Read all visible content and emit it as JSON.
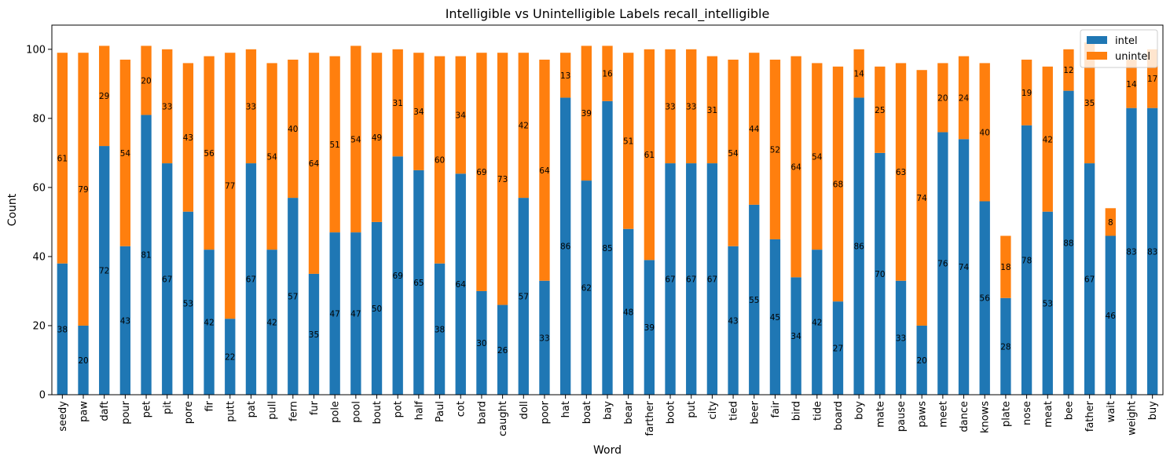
{
  "chart_data": {
    "type": "bar",
    "stacked": true,
    "title": "Intelligible vs Unintelligible Labels recall_intelligible",
    "xlabel": "Word",
    "ylabel": "Count",
    "ylim": [
      0,
      107
    ],
    "yticks": [
      0,
      20,
      40,
      60,
      80,
      100
    ],
    "legend_position": "top-right",
    "categories": [
      "seedy",
      "paw",
      "daft",
      "pour",
      "pet",
      "pit",
      "pore",
      "fir",
      "putt",
      "pat",
      "pull",
      "fern",
      "fur",
      "pole",
      "pool",
      "bout",
      "pot",
      "half",
      "Paul",
      "cot",
      "bard",
      "caught",
      "doll",
      "poor",
      "hat",
      "boat",
      "bay",
      "bear",
      "farther",
      "boot",
      "put",
      "city",
      "tied",
      "beer",
      "fair",
      "bird",
      "tide",
      "board",
      "boy",
      "mate",
      "pause",
      "paws",
      "meet",
      "dance",
      "knows",
      "plate",
      "nose",
      "meat",
      "bee",
      "father",
      "wait",
      "weight",
      "buy"
    ],
    "series": [
      {
        "name": "intel",
        "color": "#1f77b4",
        "values": [
          38,
          20,
          72,
          43,
          81,
          67,
          53,
          42,
          22,
          67,
          42,
          57,
          35,
          47,
          47,
          50,
          69,
          65,
          38,
          64,
          30,
          26,
          57,
          33,
          86,
          62,
          85,
          48,
          39,
          67,
          67,
          67,
          43,
          55,
          45,
          34,
          42,
          27,
          86,
          70,
          33,
          20,
          76,
          74,
          56,
          28,
          78,
          53,
          88,
          67,
          46,
          83,
          83
        ]
      },
      {
        "name": "unintel",
        "color": "#ff7f0e",
        "values": [
          61,
          79,
          29,
          54,
          20,
          33,
          43,
          56,
          77,
          33,
          54,
          40,
          64,
          51,
          54,
          49,
          31,
          34,
          60,
          34,
          69,
          73,
          42,
          64,
          13,
          39,
          16,
          51,
          61,
          33,
          33,
          31,
          54,
          44,
          52,
          64,
          54,
          68,
          14,
          25,
          63,
          74,
          20,
          24,
          40,
          18,
          19,
          42,
          12,
          35,
          8,
          14,
          17
        ]
      }
    ]
  }
}
